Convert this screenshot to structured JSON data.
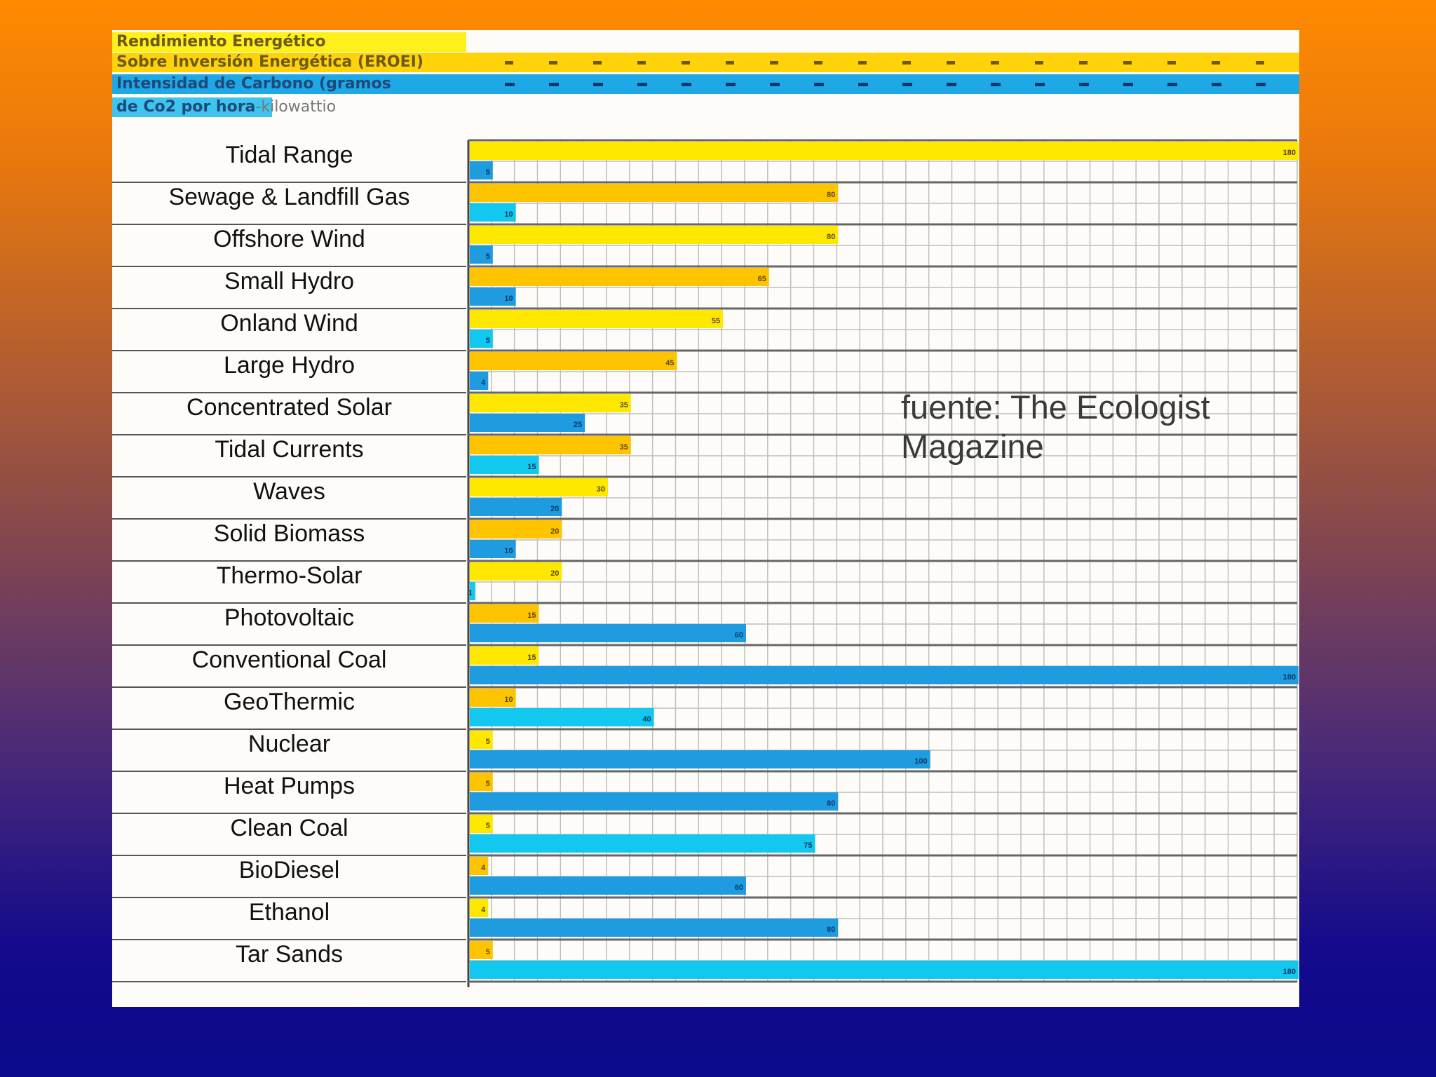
{
  "header": {
    "line1": "Rendimiento Energético",
    "line2": "Sobre Inversión Energética (EROEI)",
    "line3": "Intensidad de Carbono (gramos",
    "line4a": "de Co2 por hora",
    "line4b": "-kilowattio"
  },
  "source_note": {
    "line1": "fuente: The Ecologist",
    "line2": "Magazine"
  },
  "colors": {
    "eroei_yellow": "#ffe800",
    "eroei_orange": "#ffc400",
    "carbon_blue": "#1f9be0",
    "carbon_cyan": "#12c8ee",
    "grid": "#bfbfbf",
    "row_line": "#666666"
  },
  "chart_data": {
    "type": "bar",
    "orientation": "horizontal",
    "categories": [
      "Tidal Range",
      "Sewage & Landfill Gas",
      "Offshore Wind",
      "Small Hydro",
      "Onland Wind",
      "Large Hydro",
      "Concentrated Solar",
      "Tidal Currents",
      "Waves",
      "Solid Biomass",
      "Thermo-Solar",
      "Photovoltaic",
      "Conventional Coal",
      "GeoThermic",
      "Nuclear",
      "Heat Pumps",
      "Clean Coal",
      "BioDiesel",
      "Ethanol",
      "Tar Sands"
    ],
    "series": [
      {
        "name": "Rendimiento Energético Sobre Inversión Energética (EROEI)",
        "values": [
          180,
          80,
          80,
          65,
          55,
          45,
          35,
          35,
          30,
          20,
          20,
          15,
          15,
          10,
          5,
          5,
          5,
          4,
          4,
          5
        ]
      },
      {
        "name": "Intensidad de Carbono (gramos de Co2 por hora-kilowattio)",
        "values": [
          5,
          10,
          5,
          10,
          5,
          4,
          25,
          15,
          20,
          10,
          1,
          60,
          180,
          40,
          100,
          80,
          75,
          60,
          80,
          180
        ]
      }
    ],
    "xlim": [
      0,
      180
    ],
    "grid": true,
    "legend": "top-left"
  }
}
